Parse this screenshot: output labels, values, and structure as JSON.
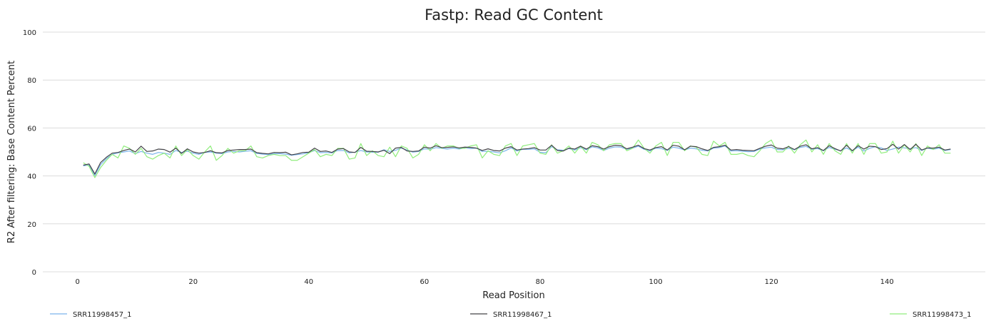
{
  "chart_data": {
    "type": "line",
    "title": "Fastp: Read GC Content",
    "xlabel": "Read Position",
    "ylabel": "R2 After filtering: Base Content Percent",
    "xlim": [
      -6,
      157
    ],
    "ylim": [
      0,
      100
    ],
    "x_ticks": [
      0,
      20,
      40,
      60,
      80,
      100,
      120,
      140
    ],
    "y_ticks": [
      0,
      20,
      40,
      60,
      80,
      100
    ],
    "grid": true,
    "legend_position": "bottom",
    "series": [
      {
        "name": "SRR11998457_1",
        "color": "#7cb5ec",
        "values": [
          44.2,
          44.6,
          40.2,
          44.7,
          47.2,
          49.0,
          49.6,
          50.0,
          50.4,
          49.3,
          50.2,
          49.5,
          49.0,
          49.8,
          49.5,
          49.0,
          50.6,
          49.8,
          50.3,
          49.5,
          49.0,
          49.8,
          50.0,
          49.5,
          49.3,
          50.0,
          50.2,
          50.0,
          50.3,
          50.5,
          49.4,
          49.1,
          48.9,
          49.3,
          49.3,
          49.1,
          48.6,
          48.9,
          49.2,
          49.7,
          50.6,
          49.7,
          49.8,
          49.6,
          50.6,
          50.6,
          49.6,
          49.9,
          50.6,
          50.0,
          49.9,
          49.9,
          50.9,
          50.2,
          50.7,
          51.6,
          50.8,
          49.9,
          50.2,
          51.3,
          51.1,
          51.8,
          51.5,
          51.2,
          51.6,
          51.2,
          51.7,
          51.4,
          51.6,
          50.2,
          50.3,
          50.0,
          49.6,
          50.5,
          51.7,
          50.4,
          51.1,
          51.1,
          51.3,
          49.9,
          49.7,
          52.2,
          50.9,
          50.7,
          51.4,
          50.8,
          51.8,
          50.9,
          52.1,
          51.7,
          50.6,
          51.6,
          52.1,
          52.0,
          51.1,
          51.6,
          52.4,
          51.1,
          50.4,
          51.6,
          51.4,
          50.6,
          52.0,
          51.6,
          50.8,
          51.6,
          51.3,
          50.7,
          50.4,
          51.6,
          51.8,
          52.5,
          50.4,
          50.5,
          50.3,
          50.1,
          50.2,
          51.2,
          51.7,
          52.0,
          51.0,
          50.9,
          51.5,
          50.9,
          51.9,
          52.3,
          51.1,
          51.4,
          50.5,
          51.9,
          51.1,
          50.5,
          51.7,
          50.4,
          52.0,
          50.4,
          51.5,
          52.2,
          51.7,
          50.6,
          51.2,
          52.0,
          51.7,
          51.4,
          51.8,
          50.6,
          51.6,
          51.1,
          51.6,
          50.6,
          51.0
        ]
      },
      {
        "name": "SRR11998467_1",
        "color": "#434348",
        "values": [
          44.5,
          45.0,
          40.8,
          45.6,
          47.8,
          49.5,
          49.8,
          50.6,
          51.2,
          50.0,
          52.4,
          50.2,
          50.4,
          51.2,
          51.0,
          49.9,
          51.6,
          49.4,
          51.3,
          50.0,
          49.5,
          49.8,
          50.5,
          49.7,
          49.6,
          50.6,
          50.8,
          51.0,
          51.0,
          51.2,
          49.7,
          49.4,
          49.2,
          49.8,
          49.7,
          49.9,
          48.8,
          49.2,
          49.8,
          49.9,
          51.6,
          50.2,
          50.4,
          49.8,
          51.2,
          51.4,
          50.0,
          49.8,
          51.9,
          50.3,
          50.2,
          50.0,
          50.7,
          49.3,
          51.6,
          51.9,
          50.4,
          50.2,
          50.4,
          52.0,
          51.6,
          52.6,
          51.8,
          51.9,
          52.1,
          51.7,
          52.0,
          51.9,
          51.6,
          50.6,
          51.3,
          50.6,
          50.4,
          51.6,
          52.2,
          50.8,
          51.2,
          51.4,
          51.8,
          50.8,
          50.8,
          52.8,
          50.6,
          50.4,
          51.6,
          51.2,
          52.4,
          51.2,
          52.6,
          52.2,
          51.2,
          52.2,
          52.8,
          52.6,
          51.3,
          52.0,
          52.8,
          51.4,
          50.8,
          51.8,
          52.2,
          50.8,
          52.8,
          52.4,
          50.9,
          52.4,
          52.2,
          51.3,
          50.6,
          51.9,
          52.2,
          52.8,
          50.8,
          51.0,
          50.7,
          50.6,
          50.5,
          51.5,
          52.4,
          52.9,
          51.6,
          51.3,
          52.2,
          51.0,
          52.4,
          53.0,
          51.3,
          51.8,
          50.6,
          52.6,
          51.4,
          50.4,
          52.8,
          50.5,
          52.6,
          51.2,
          52.4,
          52.2,
          51.0,
          51.4,
          53.2,
          51.2,
          53.1,
          51.0,
          53.2,
          50.8,
          51.7,
          51.6,
          52.0,
          50.8,
          51.2
        ]
      },
      {
        "name": "SRR11998473_1",
        "color": "#90ed7d",
        "values": [
          45.5,
          44.0,
          39.3,
          43.5,
          46.5,
          49.0,
          47.5,
          52.5,
          51.5,
          49.0,
          51.5,
          48.0,
          47.0,
          48.5,
          49.5,
          47.5,
          52.5,
          48.5,
          51.0,
          48.5,
          47.0,
          50.0,
          52.5,
          46.5,
          48.5,
          51.5,
          49.5,
          50.5,
          50.5,
          52.5,
          48.0,
          47.5,
          48.5,
          49.0,
          48.5,
          48.5,
          46.5,
          46.5,
          48.0,
          49.5,
          51.0,
          48.0,
          49.0,
          48.5,
          51.5,
          51.5,
          47.0,
          47.5,
          53.5,
          48.5,
          50.5,
          48.5,
          48.0,
          52.0,
          48.0,
          52.5,
          51.5,
          47.5,
          49.0,
          53.0,
          50.5,
          53.5,
          51.5,
          52.5,
          52.5,
          51.5,
          51.5,
          52.5,
          53.0,
          47.5,
          50.5,
          49.0,
          48.5,
          52.5,
          53.5,
          48.5,
          52.5,
          53.0,
          53.5,
          49.5,
          49.0,
          53.0,
          49.5,
          50.5,
          52.5,
          49.5,
          52.5,
          49.5,
          54.0,
          53.0,
          50.5,
          53.0,
          53.5,
          53.5,
          50.5,
          51.5,
          55.0,
          51.5,
          49.5,
          52.5,
          54.0,
          48.5,
          54.0,
          54.0,
          50.5,
          52.5,
          52.0,
          49.0,
          48.5,
          54.5,
          52.5,
          54.0,
          49.0,
          49.0,
          49.5,
          48.5,
          48.0,
          50.5,
          53.5,
          55.0,
          50.0,
          50.0,
          52.5,
          49.5,
          53.0,
          55.0,
          50.0,
          53.0,
          49.0,
          53.5,
          50.5,
          49.0,
          53.5,
          49.5,
          53.5,
          49.0,
          53.5,
          53.5,
          49.5,
          50.0,
          54.5,
          49.5,
          53.0,
          50.0,
          53.5,
          48.5,
          52.5,
          51.0,
          53.0,
          49.5,
          49.5
        ]
      }
    ]
  }
}
